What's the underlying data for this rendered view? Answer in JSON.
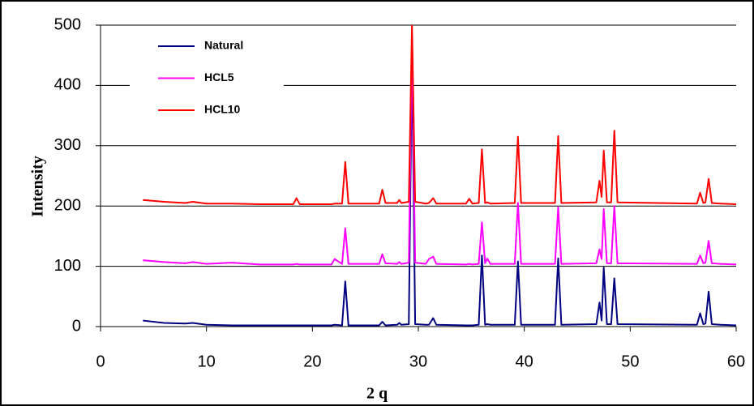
{
  "chart_data": {
    "type": "line",
    "xlabel": "2 q",
    "ylabel": "Intensity",
    "x": [
      4,
      6,
      8,
      8.7,
      10,
      12.4,
      15,
      18.2,
      18.5,
      18.8,
      21.8,
      22.1,
      22.8,
      23.1,
      23.4,
      26.3,
      26.6,
      26.9,
      28.0,
      28.2,
      28.4,
      29.1,
      29.4,
      29.7,
      30.7,
      31.0,
      31.4,
      31.7,
      34.5,
      34.8,
      35.1,
      35.7,
      36.0,
      36.3,
      36.5,
      36.8,
      39.1,
      39.4,
      39.7,
      42.9,
      43.2,
      43.5,
      46.8,
      47.1,
      47.3,
      47.5,
      47.8,
      48.2,
      48.5,
      48.8,
      56.3,
      56.6,
      56.9,
      57.1,
      57.4,
      57.7,
      58.5,
      60
    ],
    "series": [
      {
        "name": "Natural",
        "color": "#000080",
        "values": [
          10,
          6,
          5,
          6,
          3,
          2,
          2,
          2,
          2,
          2,
          2,
          3,
          2,
          75,
          2,
          2,
          8,
          2,
          3,
          6,
          3,
          4,
          450,
          4,
          3,
          3,
          14,
          3,
          2,
          2,
          2,
          3,
          118,
          3,
          4,
          3,
          3,
          108,
          3,
          3,
          113,
          3,
          4,
          40,
          10,
          98,
          4,
          4,
          80,
          4,
          3,
          22,
          4,
          5,
          58,
          4,
          3,
          2
        ]
      },
      {
        "name": "HCL5",
        "color": "#ff00ff",
        "values": [
          110,
          107,
          105,
          107,
          104,
          106,
          103,
          103,
          104,
          103,
          103,
          112,
          104,
          163,
          104,
          104,
          120,
          105,
          104,
          107,
          104,
          106,
          480,
          106,
          104,
          112,
          116,
          104,
          103,
          104,
          103,
          104,
          173,
          105,
          113,
          104,
          104,
          205,
          104,
          104,
          198,
          104,
          105,
          128,
          112,
          195,
          105,
          105,
          200,
          105,
          104,
          118,
          105,
          106,
          142,
          105,
          104,
          103
        ]
      },
      {
        "name": "HCL10",
        "color": "#ff0000",
        "values": [
          210,
          207,
          205,
          207,
          204,
          204,
          203,
          203,
          213,
          203,
          203,
          204,
          204,
          273,
          204,
          204,
          227,
          205,
          205,
          210,
          205,
          207,
          500,
          207,
          204,
          205,
          213,
          204,
          204,
          212,
          204,
          205,
          294,
          205,
          206,
          204,
          205,
          315,
          205,
          205,
          316,
          205,
          206,
          242,
          215,
          292,
          206,
          206,
          325,
          206,
          204,
          222,
          205,
          206,
          245,
          205,
          204,
          203
        ]
      }
    ],
    "xlim": [
      0,
      60
    ],
    "xticks": [
      0,
      10,
      20,
      30,
      40,
      50,
      60
    ],
    "ylim": [
      0,
      500
    ],
    "yticks": [
      0,
      100,
      200,
      300,
      400,
      500
    ],
    "grid": true,
    "legend": "upper left"
  }
}
